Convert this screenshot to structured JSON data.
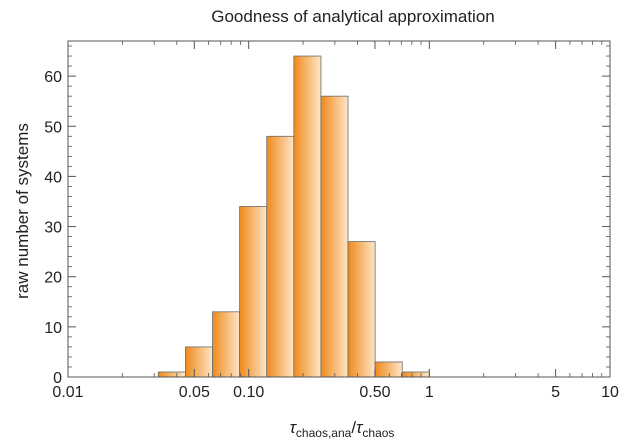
{
  "chart_data": {
    "type": "bar",
    "title": "Goodness of analytical approximation",
    "xlabel": {
      "symbol1": "τ",
      "sub1": "chaos,ana",
      "sep": "/",
      "symbol2": "τ",
      "sub2": "chaos"
    },
    "ylabel": "raw number of systems",
    "x_scale": "log",
    "xlim": [
      0.01,
      10
    ],
    "ylim": [
      0,
      67
    ],
    "x_ticks": [
      {
        "value": 0.01,
        "label": "0.01"
      },
      {
        "value": 0.05,
        "label": "0.05"
      },
      {
        "value": 0.1,
        "label": "0.10"
      },
      {
        "value": 0.5,
        "label": "0.50"
      },
      {
        "value": 1,
        "label": "1"
      },
      {
        "value": 5,
        "label": "5"
      },
      {
        "value": 10,
        "label": "10"
      }
    ],
    "y_ticks": [
      0,
      10,
      20,
      30,
      40,
      50,
      60
    ],
    "bins": [
      {
        "x_start": 0.0316,
        "x_end": 0.0447,
        "value": 1
      },
      {
        "x_start": 0.0447,
        "x_end": 0.0631,
        "value": 6
      },
      {
        "x_start": 0.0631,
        "x_end": 0.0891,
        "value": 13
      },
      {
        "x_start": 0.0891,
        "x_end": 0.1259,
        "value": 34
      },
      {
        "x_start": 0.1259,
        "x_end": 0.1778,
        "value": 48
      },
      {
        "x_start": 0.1778,
        "x_end": 0.2512,
        "value": 64
      },
      {
        "x_start": 0.2512,
        "x_end": 0.3548,
        "value": 56
      },
      {
        "x_start": 0.3548,
        "x_end": 0.5012,
        "value": 27
      },
      {
        "x_start": 0.5012,
        "x_end": 0.7079,
        "value": 3
      },
      {
        "x_start": 0.7079,
        "x_end": 1.0,
        "value": 1
      }
    ],
    "colors": {
      "bar_dark": "#f08a1c",
      "bar_light": "#fde6c8",
      "bar_stroke": "#6b6b6b",
      "frame": "#555555"
    },
    "grid": false,
    "legend": "none"
  }
}
